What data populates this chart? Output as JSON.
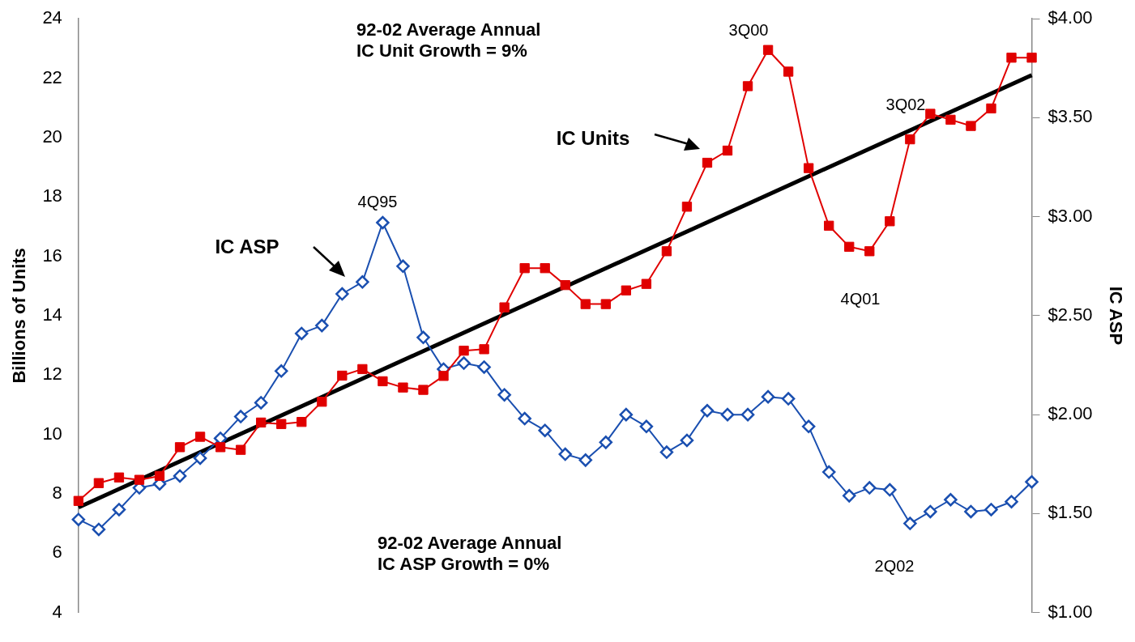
{
  "chart_data": {
    "type": "line",
    "ylabel": "Billions of Units",
    "y2label": "IC ASP",
    "categories": [
      null,
      null,
      null,
      null,
      null,
      null,
      null,
      null,
      null,
      null,
      null,
      null,
      null,
      null,
      null,
      null,
      null,
      null,
      null,
      null,
      null,
      null,
      null,
      null,
      null,
      null,
      null,
      null,
      null,
      null,
      null,
      null,
      null,
      null,
      null,
      null,
      null,
      null,
      null,
      null,
      null,
      null,
      null,
      null,
      null,
      null,
      null,
      null
    ],
    "series": [
      {
        "color": "#e00000",
        "marker": "square",
        "values": [
          7.76,
          8.36,
          8.55,
          8.47,
          8.6,
          9.57,
          9.92,
          9.57,
          9.48,
          10.4,
          10.35,
          10.42,
          11.1,
          11.98,
          12.2,
          11.79,
          11.58,
          11.5,
          11.97,
          12.82,
          12.87,
          14.28,
          15.6,
          15.6,
          15.03,
          14.39,
          14.39,
          14.85,
          15.07,
          16.17,
          17.67,
          19.15,
          19.56,
          21.73,
          22.95,
          22.22,
          18.97,
          17.03,
          16.32,
          16.17,
          17.18,
          19.94,
          20.8,
          20.6,
          20.39,
          20.98,
          22.69,
          22.69
        ]
      },
      {
        "color": "#1a4fb0",
        "marker": "diamond",
        "axis": "y2",
        "values": [
          1.47,
          1.42,
          1.52,
          1.63,
          1.65,
          1.69,
          1.78,
          1.88,
          1.99,
          2.06,
          2.22,
          2.41,
          2.45,
          2.61,
          2.67,
          2.97,
          2.75,
          2.39,
          2.23,
          2.26,
          2.24,
          2.1,
          1.98,
          1.92,
          1.8,
          1.77,
          1.86,
          2.0,
          1.94,
          1.81,
          1.87,
          2.02,
          2.0,
          2.0,
          2.09,
          2.08,
          1.94,
          1.71,
          1.59,
          1.63,
          1.62,
          1.45,
          1.51,
          1.57,
          1.51,
          1.52,
          1.56,
          1.66
        ]
      },
      {
        "color": "#000000",
        "marker": "none",
        "values": [
          7.54,
          null,
          null,
          null,
          null,
          null,
          null,
          null,
          null,
          null,
          null,
          null,
          null,
          null,
          null,
          null,
          null,
          null,
          null,
          null,
          null,
          null,
          null,
          null,
          null,
          null,
          null,
          null,
          null,
          null,
          null,
          null,
          null,
          null,
          null,
          null,
          null,
          null,
          null,
          null,
          null,
          null,
          null,
          null,
          null,
          null,
          null,
          22.1
        ]
      }
    ],
    "ylim": [
      4,
      24
    ],
    "yticks": [
      4,
      6,
      8,
      10,
      12,
      14,
      16,
      18,
      20,
      22,
      24
    ],
    "y2lim": [
      1,
      4
    ],
    "y2ticks": [
      {
        "value": 1,
        "label": "$1.00"
      },
      {
        "value": 1.5,
        "label": "$1.50"
      },
      {
        "value": 2,
        "label": "$2.00"
      },
      {
        "value": 2.5,
        "label": "$2.50"
      },
      {
        "value": 3,
        "label": "$3.00"
      },
      {
        "value": 3.5,
        "label": "$3.50"
      },
      {
        "value": 4,
        "label": "$4.00"
      }
    ],
    "annotations": [
      "92-02 Average Annual\nIC Unit Growth = 9%",
      "92-02 Average Annual\nIC ASP Growth = 0%",
      "4Q95",
      "3Q00",
      "3Q02",
      "4Q01",
      "2Q02",
      "IC Units",
      "IC ASP"
    ],
    "grid": false,
    "legend": false
  }
}
